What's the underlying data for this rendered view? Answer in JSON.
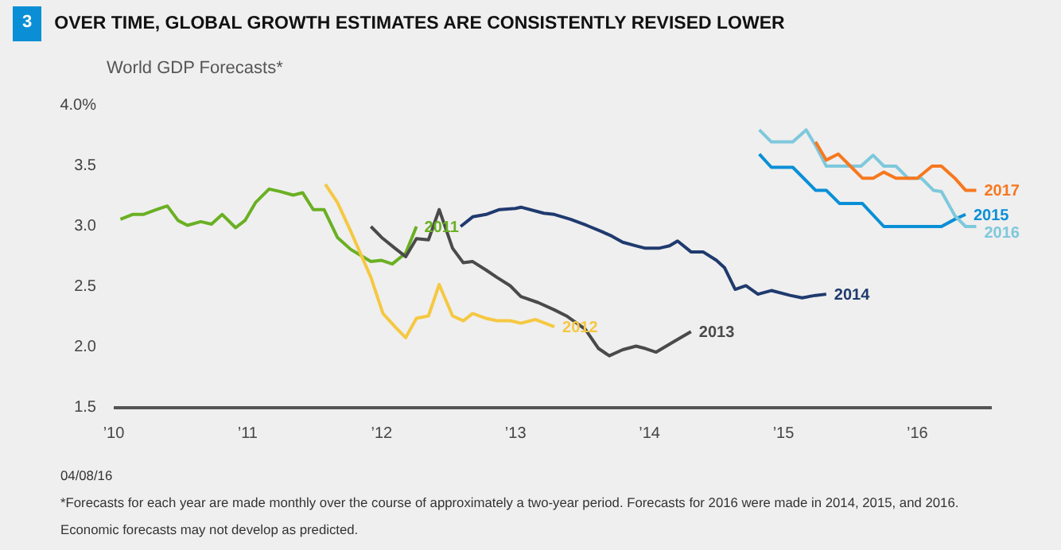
{
  "chart_data": {
    "type": "line",
    "title": "OVER TIME, GLOBAL GROWTH ESTIMATES ARE CONSISTENTLY REVISED LOWER",
    "ylabel": "World GDP Forecasts*",
    "annotations": [
      "3",
      "04/08/16",
      "*Forecasts for each year are made monthly over the course of approximately a two-year period. Forecasts for 2016 were made in 2014, 2015, and 2016.",
      "Economic forecasts may not develop as predicted."
    ],
    "xlim": [
      2010,
      2016.56
    ],
    "ylim": [
      1.5,
      4.0
    ],
    "xticks": [
      {
        "value": 2010,
        "label": "’10"
      },
      {
        "value": 2011,
        "label": "’11"
      },
      {
        "value": 2012,
        "label": "’12"
      },
      {
        "value": 2013,
        "label": "’13"
      },
      {
        "value": 2014,
        "label": "’14"
      },
      {
        "value": 2015,
        "label": "’15"
      },
      {
        "value": 2016,
        "label": "’16"
      }
    ],
    "yticks": [
      {
        "value": 1.5,
        "label": "1.5"
      },
      {
        "value": 2.0,
        "label": "2.0"
      },
      {
        "value": 2.5,
        "label": "2.5"
      },
      {
        "value": 3.0,
        "label": "3.0"
      },
      {
        "value": 3.5,
        "label": "3.5"
      },
      {
        "value": 4.0,
        "label": "4.0%"
      }
    ],
    "line_style": "solid",
    "series": [
      {
        "name": "2011",
        "color": "#6ab023",
        "x": [
          2010.05,
          2010.14,
          2010.22,
          2010.32,
          2010.4,
          2010.48,
          2010.55,
          2010.65,
          2010.73,
          2010.81,
          2010.91,
          2010.98,
          2011.06,
          2011.16,
          2011.24,
          2011.34,
          2011.41,
          2011.49,
          2011.57,
          2011.67,
          2011.77,
          2011.92,
          2012.0,
          2012.08,
          2012.18,
          2012.26
        ],
        "values": [
          3.06,
          3.1,
          3.1,
          3.14,
          3.17,
          3.05,
          3.01,
          3.04,
          3.02,
          3.1,
          2.99,
          3.05,
          3.2,
          3.31,
          3.29,
          3.26,
          3.28,
          3.14,
          3.14,
          2.91,
          2.81,
          2.71,
          2.72,
          2.69,
          2.78,
          3.0
        ]
      },
      {
        "name": "2012",
        "color": "#f5c842",
        "x": [
          2011.58,
          2011.67,
          2011.77,
          2011.92,
          2012.01,
          2012.1,
          2012.18,
          2012.26,
          2012.35,
          2012.43,
          2012.53,
          2012.61,
          2012.68,
          2012.78,
          2012.86,
          2012.96,
          2013.04,
          2013.15,
          2013.29
        ],
        "values": [
          3.35,
          3.2,
          2.96,
          2.58,
          2.28,
          2.17,
          2.08,
          2.24,
          2.26,
          2.52,
          2.26,
          2.22,
          2.28,
          2.24,
          2.22,
          2.22,
          2.2,
          2.23,
          2.17
        ]
      },
      {
        "name": "2013",
        "color": "#4a4a4a",
        "x": [
          2011.92,
          2012.0,
          2012.1,
          2012.18,
          2012.26,
          2012.35,
          2012.43,
          2012.53,
          2012.61,
          2012.68,
          2012.78,
          2012.86,
          2012.96,
          2013.04,
          2013.17,
          2013.29,
          2013.38,
          2013.52,
          2013.62,
          2013.7,
          2013.8,
          2013.9,
          2013.97,
          2014.05,
          2014.17,
          2014.31
        ],
        "values": [
          3.0,
          2.91,
          2.82,
          2.75,
          2.9,
          2.89,
          3.14,
          2.82,
          2.7,
          2.71,
          2.64,
          2.58,
          2.51,
          2.42,
          2.37,
          2.31,
          2.26,
          2.15,
          1.99,
          1.93,
          1.98,
          2.01,
          1.99,
          1.96,
          2.04,
          2.13
        ]
      },
      {
        "name": "2014",
        "color": "#1f3a6e",
        "x": [
          2012.59,
          2012.68,
          2012.78,
          2012.88,
          2013.0,
          2013.04,
          2013.21,
          2013.29,
          2013.41,
          2013.53,
          2013.64,
          2013.72,
          2013.8,
          2013.9,
          2013.97,
          2014.07,
          2014.15,
          2014.21,
          2014.31,
          2014.4,
          2014.5,
          2014.56,
          2014.64,
          2014.72,
          2014.81,
          2014.91,
          2015.05,
          2015.14,
          2015.24,
          2015.32
        ],
        "values": [
          3.0,
          3.08,
          3.1,
          3.14,
          3.15,
          3.16,
          3.11,
          3.1,
          3.06,
          3.01,
          2.96,
          2.92,
          2.87,
          2.84,
          2.82,
          2.82,
          2.84,
          2.88,
          2.79,
          2.79,
          2.72,
          2.66,
          2.48,
          2.51,
          2.44,
          2.47,
          2.43,
          2.41,
          2.43,
          2.44
        ]
      },
      {
        "name": "2015",
        "color": "#0a8fd6",
        "x": [
          2014.82,
          2014.91,
          2015.07,
          2015.24,
          2015.32,
          2015.42,
          2015.59,
          2015.75,
          2016.18,
          2016.28,
          2016.36
        ],
        "values": [
          3.6,
          3.49,
          3.49,
          3.3,
          3.3,
          3.19,
          3.19,
          3.0,
          3.0,
          3.06,
          3.1
        ]
      },
      {
        "name": "2016",
        "color": "#7ec8dc",
        "x": [
          2014.82,
          2014.91,
          2015.07,
          2015.17,
          2015.24,
          2015.32,
          2015.5,
          2015.58,
          2015.67,
          2015.75,
          2015.84,
          2015.93,
          2016.03,
          2016.12,
          2016.18,
          2016.28,
          2016.36,
          2016.44
        ],
        "values": [
          3.8,
          3.7,
          3.7,
          3.8,
          3.67,
          3.5,
          3.5,
          3.5,
          3.59,
          3.5,
          3.5,
          3.4,
          3.4,
          3.3,
          3.29,
          3.09,
          3.0,
          3.0
        ]
      },
      {
        "name": "2017",
        "color": "#f7781f",
        "x": [
          2015.24,
          2015.32,
          2015.41,
          2015.5,
          2015.59,
          2015.67,
          2015.75,
          2015.84,
          2016.0,
          2016.11,
          2016.18,
          2016.28,
          2016.36,
          2016.44
        ],
        "values": [
          3.7,
          3.55,
          3.6,
          3.5,
          3.4,
          3.4,
          3.45,
          3.4,
          3.4,
          3.5,
          3.5,
          3.4,
          3.3,
          3.3
        ]
      }
    ]
  }
}
